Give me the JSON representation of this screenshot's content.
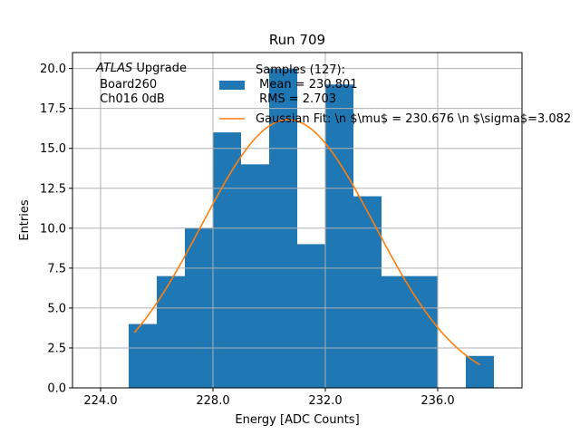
{
  "chart_data": {
    "type": "bar",
    "title": "Run 709",
    "xlabel": "Energy [ADC Counts]",
    "ylabel": "Entries",
    "xlim": [
      223.0,
      239.0
    ],
    "ylim": [
      0,
      21
    ],
    "grid": true,
    "xticks": [
      224.0,
      228.0,
      232.0,
      236.0
    ],
    "xtick_labels": [
      "224.0",
      "228.0",
      "232.0",
      "236.0"
    ],
    "yticks": [
      0,
      2.5,
      5,
      7.5,
      10,
      12.5,
      15,
      17.5,
      20
    ],
    "ytick_labels": [
      "0.0",
      "2.5",
      "5.0",
      "7.5",
      "10.0",
      "12.5",
      "15.0",
      "17.5",
      "20.0"
    ],
    "histogram": {
      "color": "#1f77b4",
      "bins": [
        {
          "x0": 225,
          "x1": 226,
          "count": 4
        },
        {
          "x0": 226,
          "x1": 227,
          "count": 7
        },
        {
          "x0": 227,
          "x1": 228,
          "count": 10
        },
        {
          "x0": 228,
          "x1": 229,
          "count": 16
        },
        {
          "x0": 229,
          "x1": 230,
          "count": 14
        },
        {
          "x0": 230,
          "x1": 231,
          "count": 20
        },
        {
          "x0": 231,
          "x1": 232,
          "count": 9
        },
        {
          "x0": 232,
          "x1": 233,
          "count": 19
        },
        {
          "x0": 233,
          "x1": 234,
          "count": 12
        },
        {
          "x0": 234,
          "x1": 235,
          "count": 7
        },
        {
          "x0": 235,
          "x1": 236,
          "count": 7
        },
        {
          "x0": 237,
          "x1": 238,
          "count": 2
        }
      ]
    },
    "fit": {
      "type": "gaussian",
      "color": "#ff7f0e",
      "amplitude": 16.8,
      "mean": 230.676,
      "sigma": 3.082,
      "x_range": [
        225.2,
        237.5
      ]
    },
    "legend": {
      "placement": "top-center",
      "entries": [
        {
          "key": "hist",
          "lines": [
            "Samples (127):",
            " Mean = 230.801",
            " RMS = 2.703"
          ]
        },
        {
          "key": "fit",
          "lines": [
            "Gaussian Fit: \\n $\\mu$ = 230.676 \\n $\\sigma$=3.082"
          ]
        }
      ]
    },
    "annotation": {
      "placement": "top-left",
      "italic_word": "ATLAS",
      "rest_first_line": " Upgrade",
      "lines": [
        " Board260",
        " Ch016 0dB"
      ]
    }
  }
}
